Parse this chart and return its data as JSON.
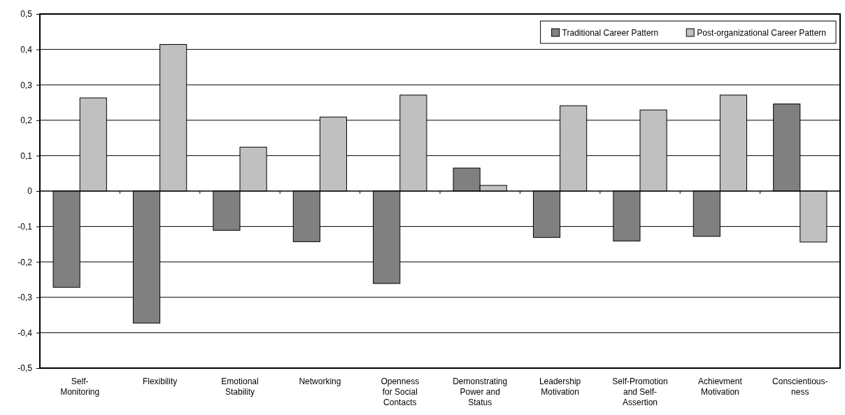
{
  "chart_data": {
    "type": "bar",
    "categories": [
      "Self-\nMonitoring",
      "Flexibility",
      "Emotional\nStability",
      "Networking",
      "Openness\nfor Social\nContacts",
      "Demonstrating\nPower and\nStatus",
      "Leadership\nMotivation",
      "Self-Promotion\nand Self-\nAssertion",
      "Achievment\nMotivation",
      "Conscientious-\nness"
    ],
    "series": [
      {
        "name": "Traditional Career Pattern",
        "color": "#808080",
        "values": [
          -0.272,
          -0.373,
          -0.111,
          -0.143,
          -0.261,
          0.065,
          -0.131,
          -0.141,
          -0.128,
          0.246
        ]
      },
      {
        "name": "Post-organizational Career Pattern",
        "color": "#c0c0c0",
        "values": [
          0.263,
          0.414,
          0.124,
          0.209,
          0.271,
          0.016,
          0.241,
          0.229,
          0.271,
          -0.144
        ]
      }
    ],
    "ylim": [
      -0.5,
      0.5
    ],
    "yticks": [
      {
        "value": -0.5,
        "label": "-0,5"
      },
      {
        "value": -0.4,
        "label": "-0,4"
      },
      {
        "value": -0.3,
        "label": "-0,3"
      },
      {
        "value": -0.2,
        "label": "-0,2"
      },
      {
        "value": -0.1,
        "label": "-0,1"
      },
      0,
      {
        "value": 0.1,
        "label": "0,1"
      },
      {
        "value": 0.2,
        "label": "0,2"
      },
      {
        "value": 0.3,
        "label": "0,3"
      },
      {
        "value": 0.4,
        "label": "0,4"
      },
      {
        "value": 0.5,
        "label": "0,5"
      }
    ],
    "grid": "y",
    "legend": "top right"
  }
}
